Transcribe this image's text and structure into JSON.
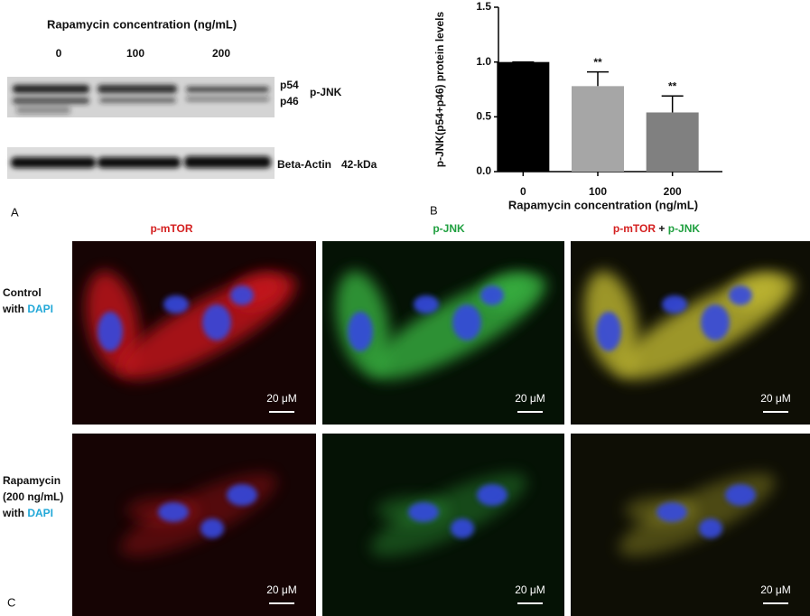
{
  "panel_a": {
    "label": "A",
    "title": "Rapamycin  concentration (ng/mL)",
    "lanes": [
      "0",
      "100",
      "200"
    ],
    "bands": {
      "p54": "p54",
      "p46": "p46",
      "target": "p-JNK",
      "control": "Beta-Actin",
      "control_size": "42-kDa"
    }
  },
  "chart_data": {
    "type": "bar",
    "panel_label": "B",
    "ylabel": "p-JNK(p54+p46) protein levels",
    "xlabel": "Rapamycin concentration (ng/mL)",
    "categories": [
      "0",
      "100",
      "200"
    ],
    "values": [
      1.0,
      0.78,
      0.54
    ],
    "errors": [
      0,
      0.13,
      0.15
    ],
    "annotations": [
      null,
      "**",
      "**"
    ],
    "colors": [
      "#000000",
      "#a6a6a6",
      "#808080"
    ],
    "ylim": [
      0,
      1.5
    ],
    "yticks": [
      {
        "value": 0,
        "label": "0.0"
      },
      0.5,
      {
        "value": 1,
        "label": "1.0"
      },
      1.5
    ]
  },
  "panel_c": {
    "label": "C",
    "columns": {
      "mtor": "p-mTOR",
      "jnk": "p-JNK",
      "plus": "+"
    },
    "rows": [
      {
        "lines": [
          "Control",
          "with"
        ]
      },
      {
        "lines": [
          "Rapamycin",
          "(200 ng/mL)",
          "with"
        ]
      }
    ],
    "dapi": "DAPI",
    "scale_bar": "20 μM"
  }
}
